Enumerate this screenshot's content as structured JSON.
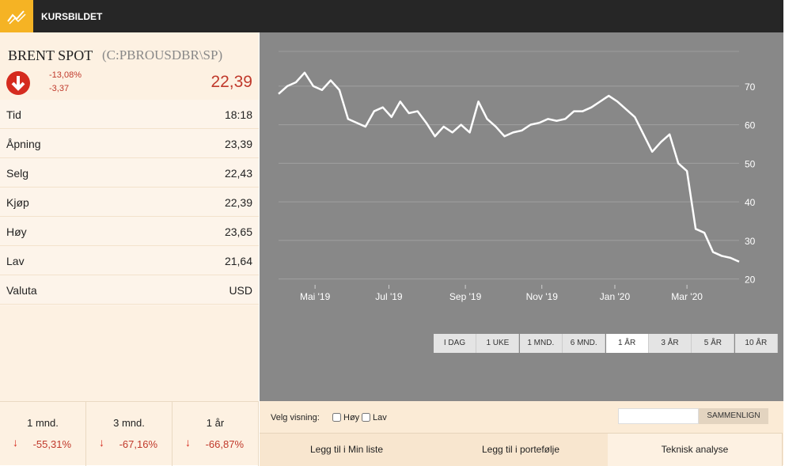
{
  "header": {
    "title": "KURSBILDET"
  },
  "instrument": {
    "name": "BRENT SPOT",
    "code": "(C:PBROUSDBR\\SP)",
    "change_pct": "-13,08%",
    "change_abs": "-3,37",
    "price": "22,39"
  },
  "table": {
    "rows": [
      [
        "Tid",
        "18:18"
      ],
      [
        "Åpning",
        "23,39"
      ],
      [
        "Selg",
        "22,43"
      ],
      [
        "Kjøp",
        "22,39"
      ],
      [
        "Høy",
        "23,65"
      ],
      [
        "Lav",
        "21,64"
      ],
      [
        "Valuta",
        "USD"
      ]
    ]
  },
  "periods": [
    {
      "label": "1 mnd.",
      "change": "-55,31%"
    },
    {
      "label": "3 mnd.",
      "change": "-67,16%"
    },
    {
      "label": "1 år",
      "change": "-66,87%"
    }
  ],
  "range_buttons": [
    "I DAG",
    "1 UKE",
    "1 MND.",
    "6 MND.",
    "1 ÅR",
    "3 ÅR",
    "5 ÅR",
    "10 ÅR"
  ],
  "active_range": "1 ÅR",
  "view": {
    "label": "Velg visning:",
    "options": [
      "Høy",
      "Lav"
    ],
    "compare": "SAMMENLIGN"
  },
  "actions": [
    "Legg til i Min liste",
    "Legg til i portefølje",
    "Teknisk analyse"
  ],
  "chart_data": {
    "type": "line",
    "color": "#ffffff",
    "grid": true,
    "values": [
      68,
      70,
      71,
      73.5,
      70,
      69,
      71.5,
      69,
      61.5,
      60.5,
      59.5,
      63.5,
      64.5,
      62,
      66,
      63,
      63.5,
      60.5,
      57,
      59.5,
      58,
      60,
      58,
      66,
      61.5,
      59.5,
      57,
      58,
      58.5,
      60,
      60.5,
      61.5,
      61,
      61.5,
      63.5,
      63.5,
      64.5,
      66,
      67.5,
      66,
      64,
      62,
      57.5,
      53,
      55.5,
      57.5,
      50,
      48,
      33,
      32,
      27,
      26,
      25.5,
      24.5
    ],
    "xlim": [
      0,
      53
    ],
    "xticks": [
      {
        "value": 4.2,
        "label": "Mai '19"
      },
      {
        "value": 12.7,
        "label": "Jul '19"
      },
      {
        "value": 21.5,
        "label": "Sep '19"
      },
      {
        "value": 30.3,
        "label": "Nov '19"
      },
      {
        "value": 38.7,
        "label": "Jan '20"
      },
      {
        "value": 47,
        "label": "Mar '20"
      }
    ],
    "ylim": [
      18.5,
      79
    ],
    "yticks": [
      20,
      30,
      40,
      50,
      60,
      70
    ]
  }
}
